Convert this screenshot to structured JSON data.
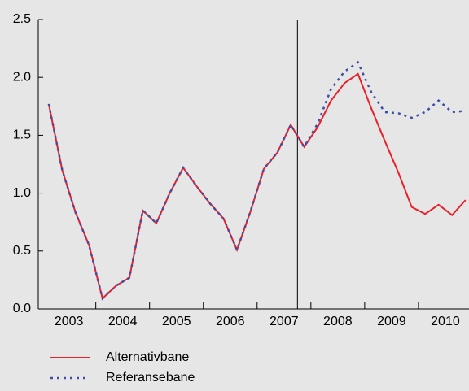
{
  "chart_data": {
    "type": "line",
    "x": [
      2003.125,
      2003.375,
      2003.625,
      2003.875,
      2004.125,
      2004.375,
      2004.625,
      2004.875,
      2005.125,
      2005.375,
      2005.625,
      2005.875,
      2006.125,
      2006.375,
      2006.625,
      2006.875,
      2007.125,
      2007.375,
      2007.625,
      2007.875,
      2008.125,
      2008.375,
      2008.625,
      2008.875,
      2009.125,
      2009.375,
      2009.625,
      2009.875,
      2010.125,
      2010.375,
      2010.625,
      2010.875
    ],
    "series": [
      {
        "name": "Alternativbane",
        "color": "#e8202a",
        "style": "solid",
        "values": [
          1.77,
          1.2,
          0.83,
          0.55,
          0.09,
          0.2,
          0.27,
          0.85,
          0.74,
          1.0,
          1.22,
          1.06,
          0.91,
          0.78,
          0.51,
          0.84,
          1.21,
          1.35,
          1.59,
          1.4,
          1.57,
          1.8,
          1.95,
          2.03,
          1.73,
          1.45,
          1.18,
          0.88,
          0.82,
          0.9,
          0.81,
          0.94
        ]
      },
      {
        "name": "Referansebane",
        "color": "#3b4fa8",
        "style": "dotted",
        "values": [
          1.77,
          1.2,
          0.83,
          0.55,
          0.09,
          0.2,
          0.27,
          0.85,
          0.74,
          1.0,
          1.22,
          1.06,
          0.91,
          0.78,
          0.51,
          0.84,
          1.21,
          1.35,
          1.59,
          1.4,
          1.6,
          1.9,
          2.05,
          2.13,
          1.87,
          1.7,
          1.69,
          1.65,
          1.7,
          1.8,
          1.7,
          1.71
        ]
      }
    ],
    "xlim": [
      2002.93,
      2010.94
    ],
    "xticks": [
      {
        "value": 2003.5,
        "label": "2003"
      },
      {
        "value": 2004.5,
        "label": "2004"
      },
      {
        "value": 2005.5,
        "label": "2005"
      },
      {
        "value": 2006.5,
        "label": "2006"
      },
      {
        "value": 2007.5,
        "label": "2007"
      },
      {
        "value": 2008.5,
        "label": "2008"
      },
      {
        "value": 2009.5,
        "label": "2009"
      },
      {
        "value": 2010.5,
        "label": "2010"
      }
    ],
    "ylim": [
      0,
      2.5
    ],
    "yticks": [
      {
        "value": 0,
        "label": "0.0"
      },
      {
        "value": 0.5,
        "label": "0.5"
      },
      {
        "value": 1,
        "label": "1.0"
      },
      {
        "value": 1.5,
        "label": "1.5"
      },
      {
        "value": 2,
        "label": "2.0"
      },
      {
        "value": 2.5,
        "label": "2.5"
      }
    ],
    "vline": 2007.75
  }
}
